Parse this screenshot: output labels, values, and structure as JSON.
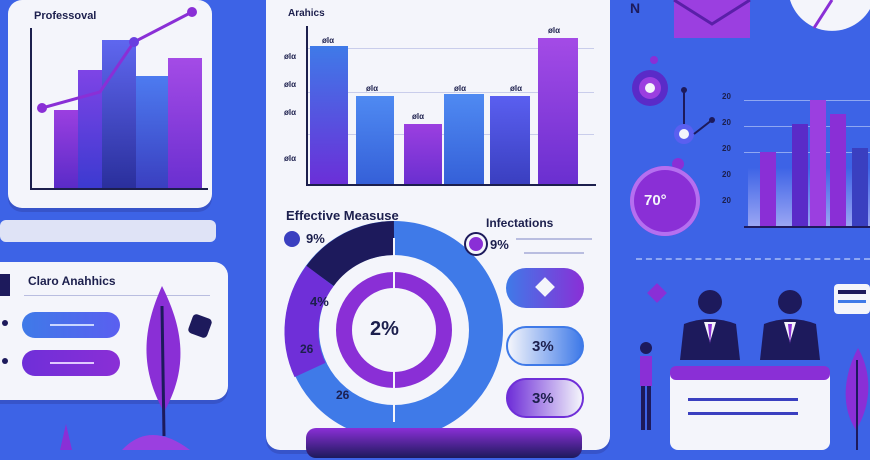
{
  "panels": {
    "left_top": {
      "title": "Professoval"
    },
    "left_bottom": {
      "title": "Claro Anahhics"
    },
    "center_top": {
      "title": "Arahics",
      "y_labels": [
        "ølα",
        "ølα",
        "ølα",
        "ølα"
      ],
      "bar_labels": [
        "ølα",
        "ølα",
        "ølα",
        "ølα",
        "ølα",
        "ølα"
      ]
    },
    "center_bottom": {
      "title": "Effective Measuse",
      "legend_label": "9%",
      "donut_center": "2%",
      "donut_labels": [
        "4%",
        "26",
        "26"
      ]
    },
    "center_right": {
      "title": "Infectations",
      "legend_label": "9%",
      "pill_values": [
        "3%",
        "3%"
      ]
    },
    "right": {
      "header_letter": "N",
      "badge_value": "70°",
      "y_labels": [
        "20",
        "20",
        "20",
        "20",
        "20"
      ]
    }
  },
  "colors": {
    "background": "#3d63e6",
    "purple": "#8a2fd6",
    "navy": "#1d1a5c",
    "blue": "#3f7ae8"
  }
}
